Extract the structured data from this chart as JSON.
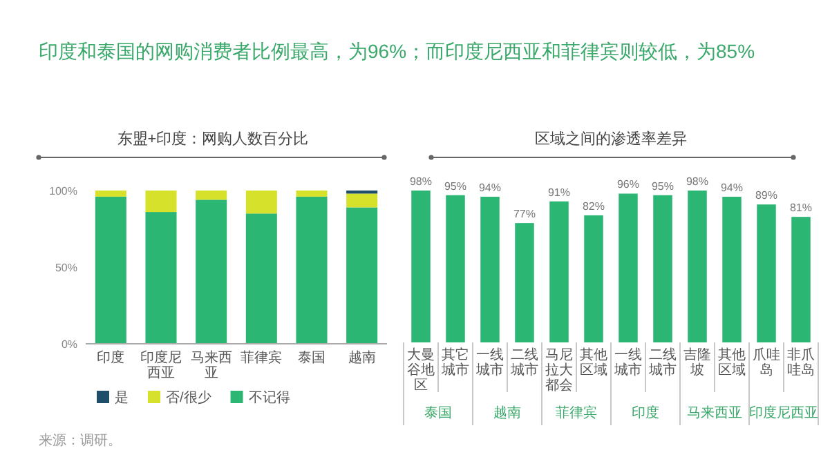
{
  "chart_data": [
    {
      "type": "bar",
      "stacked": true,
      "title": "印度和泰国的网购消费者比例最高，为96%；而印度尼西亚和菲律宾则较低，为85%",
      "subtitle": "东盟+印度：网购人数百分比",
      "categories": [
        "印度",
        "印度尼西亚",
        "马来西亚",
        "菲律宾",
        "泰国",
        "越南"
      ],
      "series": [
        {
          "name": "不记得",
          "color": "#2bb673",
          "values": [
            96,
            86,
            94,
            85,
            96,
            89
          ]
        },
        {
          "name": "否/很少",
          "color": "#d6e12c",
          "values": [
            4,
            14,
            6,
            15,
            4,
            9
          ]
        },
        {
          "name": "是",
          "color": "#1f4e6b",
          "values": [
            0,
            0,
            0,
            0,
            0,
            2
          ]
        }
      ],
      "ylim": [
        0,
        100
      ],
      "yticks": [
        {
          "value": 0,
          "label": "0%"
        },
        {
          "value": 50,
          "label": "50%"
        },
        {
          "value": 100,
          "label": "100%"
        }
      ],
      "legend": "bottom",
      "annotations": [
        "来源：调研。"
      ]
    },
    {
      "type": "bar",
      "title": "区域之间的渗透率差异",
      "categories": [
        "大曼谷地区",
        "其它城市",
        "一线城市",
        "二线城市",
        "马尼拉大都会",
        "其他区域",
        "一线城市",
        "二线城市",
        "吉隆坡",
        "其他区域",
        "爪哇岛",
        "非爪哇岛"
      ],
      "values": [
        98,
        95,
        94,
        77,
        91,
        82,
        96,
        95,
        98,
        94,
        89,
        81
      ],
      "color": "#2bb673",
      "value_labels": [
        "98%",
        "95%",
        "94%",
        "77%",
        "91%",
        "82%",
        "96%",
        "95%",
        "98%",
        "94%",
        "89%",
        "81%"
      ],
      "annotations": [
        "泰国",
        "越南",
        "菲律宾",
        "印度",
        "马来西亚",
        "印度尼西亚"
      ]
    }
  ]
}
